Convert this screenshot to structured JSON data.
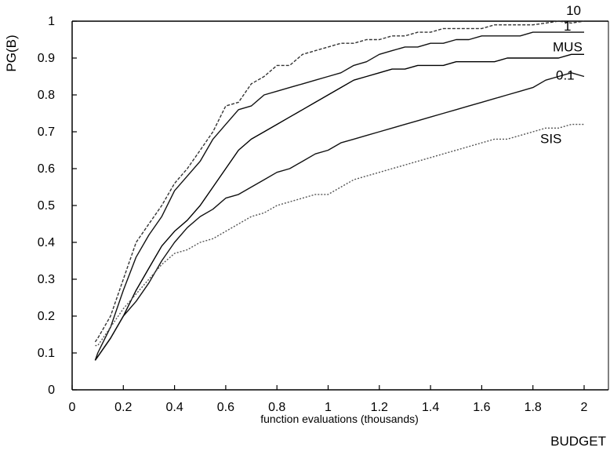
{
  "chart_data": {
    "type": "line",
    "title": "",
    "ylabel": "PG(B)",
    "xlabel": "function evaluations (thousands)",
    "xlabel_secondary": "BUDGET",
    "xlim": [
      0,
      2.1
    ],
    "ylim": [
      0,
      1
    ],
    "x_ticks": [
      0,
      0.2,
      0.4,
      0.6,
      0.8,
      1,
      1.2,
      1.4,
      1.6,
      1.8,
      2
    ],
    "x_tick_labels": [
      "0",
      "0.2",
      "0.4",
      "0.6",
      "0.8",
      "1",
      "1.2",
      "1.4",
      "1.6",
      "1.8",
      "2"
    ],
    "y_ticks": [
      0,
      0.1,
      0.2,
      0.3,
      0.4,
      0.5,
      0.6,
      0.7,
      0.8,
      0.9,
      1
    ],
    "y_tick_labels": [
      "0",
      "0.1",
      "0.2",
      "0.3",
      "0.4",
      "0.5",
      "0.6",
      "0.7",
      "0.8",
      "0.9",
      "1"
    ],
    "grid": false,
    "legend": "inline labels at right end of each curve",
    "x": [
      0.09,
      0.1,
      0.15,
      0.2,
      0.25,
      0.3,
      0.35,
      0.4,
      0.45,
      0.5,
      0.55,
      0.6,
      0.65,
      0.7,
      0.75,
      0.8,
      0.85,
      0.9,
      0.95,
      1.0,
      1.05,
      1.1,
      1.15,
      1.2,
      1.25,
      1.3,
      1.35,
      1.4,
      1.45,
      1.5,
      1.55,
      1.6,
      1.65,
      1.7,
      1.75,
      1.8,
      1.85,
      1.9,
      1.95,
      2.0
    ],
    "series": [
      {
        "name": "10",
        "color": "#333333",
        "dash": "4,2",
        "values": [
          0.13,
          0.14,
          0.2,
          0.3,
          0.4,
          0.45,
          0.5,
          0.56,
          0.6,
          0.65,
          0.7,
          0.77,
          0.78,
          0.83,
          0.85,
          0.88,
          0.88,
          0.91,
          0.92,
          0.93,
          0.94,
          0.94,
          0.95,
          0.95,
          0.96,
          0.96,
          0.97,
          0.97,
          0.98,
          0.98,
          0.98,
          0.98,
          0.99,
          0.99,
          0.99,
          0.99,
          0.995,
          1.0,
          0.995,
          1.0
        ]
      },
      {
        "name": "1",
        "color": "#111111",
        "dash": "",
        "values": [
          0.08,
          0.1,
          0.17,
          0.27,
          0.36,
          0.42,
          0.47,
          0.54,
          0.58,
          0.62,
          0.68,
          0.72,
          0.76,
          0.77,
          0.8,
          0.81,
          0.82,
          0.83,
          0.84,
          0.85,
          0.86,
          0.88,
          0.89,
          0.91,
          0.92,
          0.93,
          0.93,
          0.94,
          0.94,
          0.95,
          0.95,
          0.96,
          0.96,
          0.96,
          0.96,
          0.97,
          0.97,
          0.97,
          0.97,
          0.97
        ]
      },
      {
        "name": "MUS",
        "color": "#000000",
        "dash": "",
        "values": [
          0.08,
          0.09,
          0.14,
          0.2,
          0.27,
          0.33,
          0.39,
          0.43,
          0.46,
          0.5,
          0.55,
          0.6,
          0.65,
          0.68,
          0.7,
          0.72,
          0.74,
          0.76,
          0.78,
          0.8,
          0.82,
          0.84,
          0.85,
          0.86,
          0.87,
          0.87,
          0.88,
          0.88,
          0.88,
          0.89,
          0.89,
          0.89,
          0.89,
          0.9,
          0.9,
          0.9,
          0.9,
          0.9,
          0.91,
          0.91
        ]
      },
      {
        "name": "0.1",
        "color": "#111111",
        "dash": "",
        "values": [
          0.08,
          0.09,
          0.14,
          0.2,
          0.24,
          0.29,
          0.35,
          0.4,
          0.44,
          0.47,
          0.49,
          0.52,
          0.53,
          0.55,
          0.57,
          0.59,
          0.6,
          0.62,
          0.64,
          0.65,
          0.67,
          0.68,
          0.69,
          0.7,
          0.71,
          0.72,
          0.73,
          0.74,
          0.75,
          0.76,
          0.77,
          0.78,
          0.79,
          0.8,
          0.81,
          0.82,
          0.84,
          0.85,
          0.86,
          0.85
        ]
      },
      {
        "name": "SIS",
        "color": "#555555",
        "dash": "2,2",
        "values": [
          0.12,
          0.12,
          0.17,
          0.22,
          0.26,
          0.3,
          0.34,
          0.37,
          0.38,
          0.4,
          0.41,
          0.43,
          0.45,
          0.47,
          0.48,
          0.5,
          0.51,
          0.52,
          0.53,
          0.53,
          0.55,
          0.57,
          0.58,
          0.59,
          0.6,
          0.61,
          0.62,
          0.63,
          0.64,
          0.65,
          0.66,
          0.67,
          0.68,
          0.68,
          0.69,
          0.7,
          0.71,
          0.71,
          0.72,
          0.72
        ]
      }
    ]
  }
}
